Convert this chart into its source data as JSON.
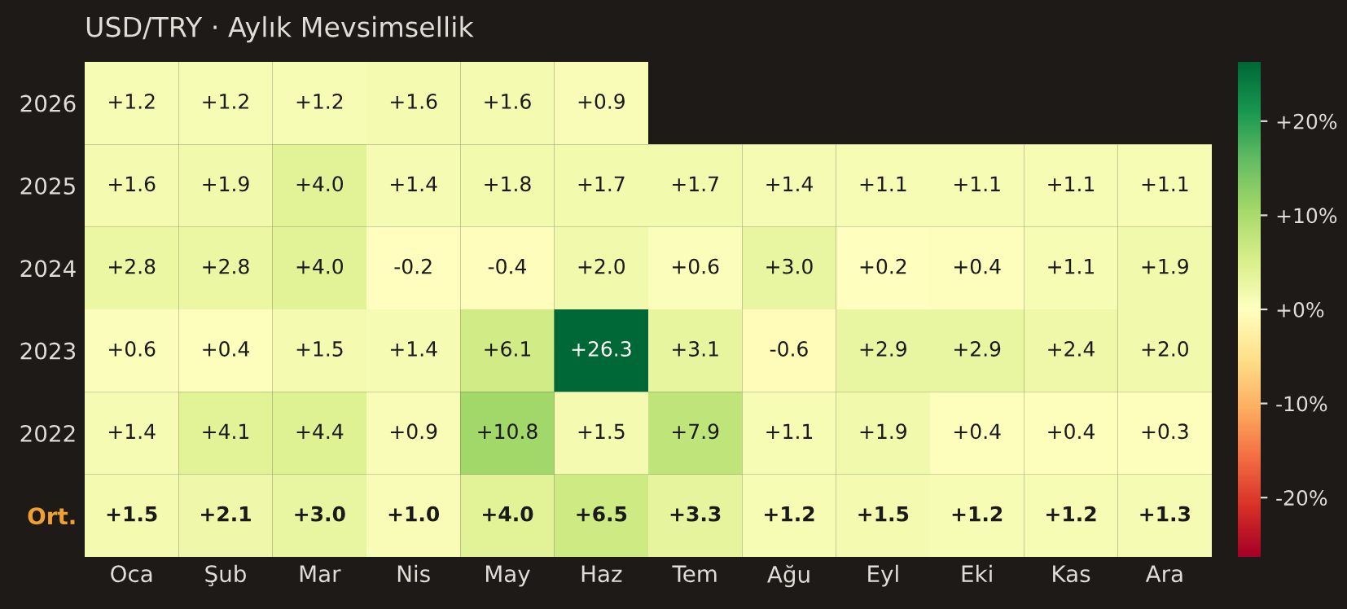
{
  "chart_data": {
    "type": "heatmap",
    "title": "USD/TRY · Aylık Mevsimsellik",
    "categories": [
      "Oca",
      "Şub",
      "Mar",
      "Nis",
      "May",
      "Haz",
      "Tem",
      "Ağu",
      "Eyl",
      "Eki",
      "Kas",
      "Ara"
    ],
    "y_categories": [
      "2026",
      "2025",
      "2024",
      "2023",
      "2022",
      "Ort."
    ],
    "cells": [
      [
        1.2,
        1.2,
        1.2,
        1.6,
        1.6,
        0.9,
        null,
        null,
        null,
        null,
        null,
        null
      ],
      [
        1.6,
        1.9,
        4.0,
        1.4,
        1.8,
        1.7,
        1.7,
        1.4,
        1.1,
        1.1,
        1.1,
        1.1
      ],
      [
        2.8,
        2.8,
        4.0,
        -0.2,
        -0.4,
        2.0,
        0.6,
        3.0,
        0.2,
        0.4,
        1.1,
        1.9
      ],
      [
        0.6,
        0.4,
        1.5,
        1.4,
        6.1,
        26.3,
        3.1,
        -0.6,
        2.9,
        2.9,
        2.4,
        2.0
      ],
      [
        1.4,
        4.1,
        4.4,
        0.9,
        10.8,
        1.5,
        7.9,
        1.1,
        1.9,
        0.4,
        0.4,
        0.3
      ],
      [
        1.5,
        2.1,
        3.0,
        1.0,
        4.0,
        6.5,
        3.3,
        1.2,
        1.5,
        1.2,
        1.2,
        1.3
      ]
    ],
    "cell_labels": [
      [
        "+1.2",
        "+1.2",
        "+1.2",
        "+1.6",
        "+1.6",
        "+0.9",
        null,
        null,
        null,
        null,
        null,
        null
      ],
      [
        "+1.6",
        "+1.9",
        "+4.0",
        "+1.4",
        "+1.8",
        "+1.7",
        "+1.7",
        "+1.4",
        "+1.1",
        "+1.1",
        "+1.1",
        "+1.1"
      ],
      [
        "+2.8",
        "+2.8",
        "+4.0",
        "-0.2",
        "-0.4",
        "+2.0",
        "+0.6",
        "+3.0",
        "+0.2",
        "+0.4",
        "+1.1",
        "+1.9"
      ],
      [
        "+0.6",
        "+0.4",
        "+1.5",
        "+1.4",
        "+6.1",
        "+26.3",
        "+3.1",
        "-0.6",
        "+2.9",
        "+2.9",
        "+2.4",
        "+2.0"
      ],
      [
        "+1.4",
        "+4.1",
        "+4.4",
        "+0.9",
        "+10.8",
        "+1.5",
        "+7.9",
        "+1.1",
        "+1.9",
        "+0.4",
        "+0.4",
        "+0.3"
      ],
      [
        "+1.5",
        "+2.1",
        "+3.0",
        "+1.0",
        "+4.0",
        "+6.5",
        "+3.3",
        "+1.2",
        "+1.5",
        "+1.2",
        "+1.2",
        "+1.3"
      ]
    ],
    "clim": [
      -26.3,
      26.3
    ],
    "cticks": [
      {
        "value": -20,
        "label": "-20%"
      },
      {
        "value": -10,
        "label": "-10%"
      },
      {
        "value": 0,
        "label": "+0%"
      },
      {
        "value": 10,
        "label": "+10%"
      },
      {
        "value": 20,
        "label": "+20%"
      }
    ]
  }
}
